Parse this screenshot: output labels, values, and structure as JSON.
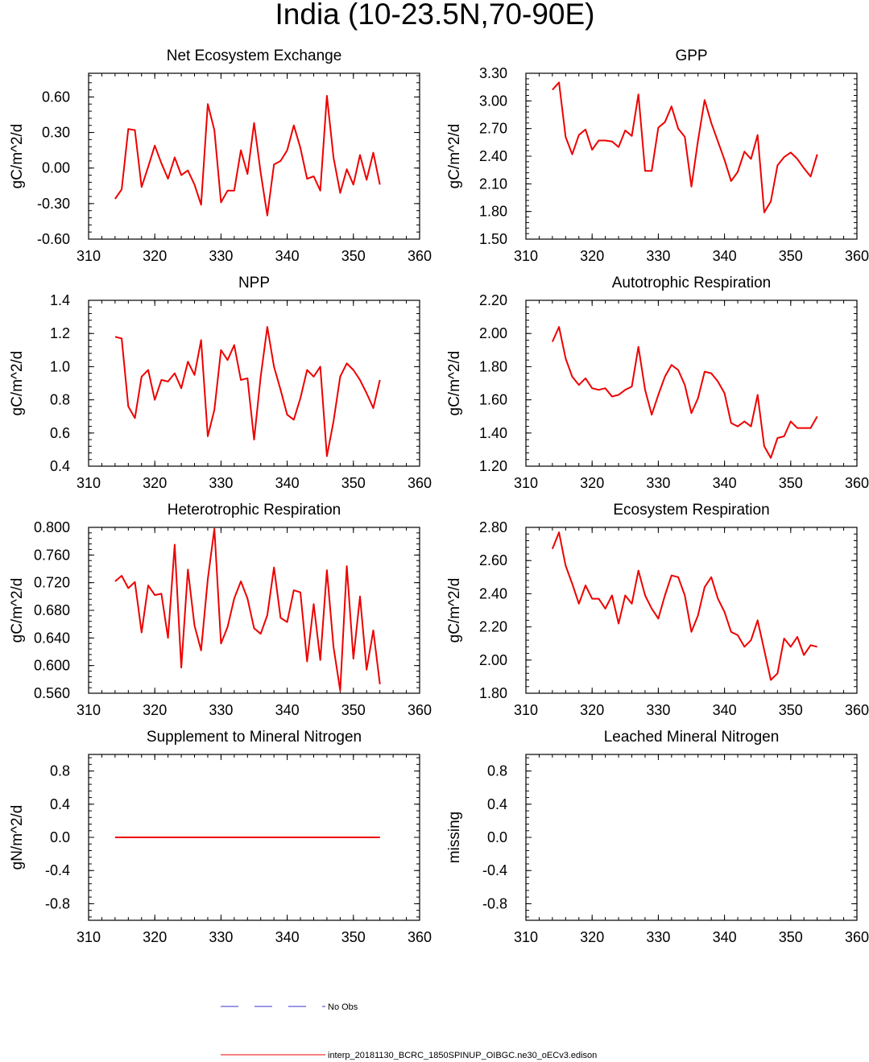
{
  "figure": {
    "title": "India (10-23.5N,70-90E)"
  },
  "legend": {
    "obs_label": "No Obs",
    "obs_color": "#3333cc",
    "model_label": "interp_20181130_BCRC_1850SPINUP_OIBGC.ne30_oECv3.edison",
    "model_color": "#ee0000"
  },
  "chart_data": [
    {
      "type": "line",
      "title": "Net Ecosystem Exchange",
      "xlabel": "",
      "ylabel": "gC/m^2/d",
      "xlim": [
        310,
        360
      ],
      "xticks": [
        310,
        320,
        330,
        340,
        350,
        360
      ],
      "ylim": [
        -0.6,
        0.8
      ],
      "yticks": [
        "-0.60",
        "-0.30",
        "0.00",
        "0.30",
        "0.60"
      ],
      "series": [
        {
          "name": "interp_20181130_BCRC_1850SPINUP_OIBGC.ne30_oECv3.edison",
          "x": [
            314,
            315,
            316,
            317,
            318,
            319,
            320,
            321,
            322,
            323,
            324,
            325,
            326,
            327,
            328,
            329,
            330,
            331,
            332,
            333,
            334,
            335,
            336,
            337,
            338,
            339,
            340,
            341,
            342,
            343,
            344,
            345,
            346,
            347,
            348,
            349,
            350,
            351,
            352,
            353,
            354
          ],
          "values": [
            -0.26,
            -0.18,
            0.33,
            0.32,
            -0.16,
            0.01,
            0.19,
            0.04,
            -0.09,
            0.09,
            -0.06,
            -0.02,
            -0.14,
            -0.31,
            0.54,
            0.32,
            -0.29,
            -0.19,
            -0.19,
            0.15,
            -0.05,
            0.38,
            -0.04,
            -0.4,
            0.03,
            0.06,
            0.15,
            0.36,
            0.17,
            -0.09,
            -0.07,
            -0.19,
            0.61,
            0.09,
            -0.21,
            -0.01,
            -0.14,
            0.11,
            -0.1,
            0.13,
            -0.14
          ]
        }
      ]
    },
    {
      "type": "line",
      "title": "GPP",
      "xlabel": "",
      "ylabel": "gC/m^2/d",
      "xlim": [
        310,
        360
      ],
      "xticks": [
        310,
        320,
        330,
        340,
        350,
        360
      ],
      "ylim": [
        1.5,
        3.3
      ],
      "yticks": [
        "1.50",
        "1.80",
        "2.10",
        "2.40",
        "2.70",
        "3.00",
        "3.30"
      ],
      "series": [
        {
          "name": "interp_20181130_BCRC_1850SPINUP_OIBGC.ne30_oECv3.edison",
          "x": [
            314,
            315,
            316,
            317,
            318,
            319,
            320,
            321,
            322,
            323,
            324,
            325,
            326,
            327,
            328,
            329,
            330,
            331,
            332,
            333,
            334,
            335,
            336,
            337,
            338,
            339,
            340,
            341,
            342,
            343,
            344,
            345,
            346,
            347,
            348,
            349,
            350,
            351,
            352,
            353,
            354
          ],
          "values": [
            3.12,
            3.2,
            2.61,
            2.42,
            2.63,
            2.69,
            2.47,
            2.57,
            2.57,
            2.56,
            2.5,
            2.68,
            2.62,
            3.07,
            2.24,
            2.24,
            2.71,
            2.77,
            2.94,
            2.7,
            2.61,
            2.07,
            2.57,
            3.01,
            2.76,
            2.56,
            2.36,
            2.13,
            2.23,
            2.45,
            2.37,
            2.63,
            1.79,
            1.91,
            2.3,
            2.39,
            2.44,
            2.37,
            2.27,
            2.18,
            2.42
          ]
        }
      ]
    },
    {
      "type": "line",
      "title": "NPP",
      "xlabel": "",
      "ylabel": "gC/m^2/d",
      "xlim": [
        310,
        360
      ],
      "xticks": [
        310,
        320,
        330,
        340,
        350,
        360
      ],
      "ylim": [
        0.4,
        1.4
      ],
      "yticks": [
        "0.4",
        "0.6",
        "0.8",
        "1.0",
        "1.2",
        "1.4"
      ],
      "series": [
        {
          "name": "interp_20181130_BCRC_1850SPINUP_OIBGC.ne30_oECv3.edison",
          "x": [
            314,
            315,
            316,
            317,
            318,
            319,
            320,
            321,
            322,
            323,
            324,
            325,
            326,
            327,
            328,
            329,
            330,
            331,
            332,
            333,
            334,
            335,
            336,
            337,
            338,
            339,
            340,
            341,
            342,
            343,
            344,
            345,
            346,
            347,
            348,
            349,
            350,
            351,
            352,
            353,
            354
          ],
          "values": [
            1.18,
            1.17,
            0.76,
            0.69,
            0.94,
            0.98,
            0.8,
            0.92,
            0.91,
            0.96,
            0.87,
            1.03,
            0.95,
            1.16,
            0.58,
            0.74,
            1.1,
            1.04,
            1.13,
            0.92,
            0.93,
            0.56,
            0.94,
            1.24,
            1.0,
            0.86,
            0.71,
            0.68,
            0.81,
            0.98,
            0.94,
            1.0,
            0.46,
            0.67,
            0.94,
            1.02,
            0.98,
            0.92,
            0.84,
            0.75,
            0.92
          ]
        }
      ]
    },
    {
      "type": "line",
      "title": "Autotrophic Respiration",
      "xlabel": "",
      "ylabel": "gC/m^2/d",
      "xlim": [
        310,
        360
      ],
      "xticks": [
        310,
        320,
        330,
        340,
        350,
        360
      ],
      "ylim": [
        1.2,
        2.2
      ],
      "yticks": [
        "1.20",
        "1.40",
        "1.60",
        "1.80",
        "2.00",
        "2.20"
      ],
      "series": [
        {
          "name": "interp_20181130_BCRC_1850SPINUP_OIBGC.ne30_oECv3.edison",
          "x": [
            314,
            315,
            316,
            317,
            318,
            319,
            320,
            321,
            322,
            323,
            324,
            325,
            326,
            327,
            328,
            329,
            330,
            331,
            332,
            333,
            334,
            335,
            336,
            337,
            338,
            339,
            340,
            341,
            342,
            343,
            344,
            345,
            346,
            347,
            348,
            349,
            350,
            351,
            352,
            353,
            354
          ],
          "values": [
            1.95,
            2.04,
            1.85,
            1.74,
            1.69,
            1.73,
            1.67,
            1.66,
            1.67,
            1.62,
            1.63,
            1.66,
            1.68,
            1.92,
            1.66,
            1.51,
            1.63,
            1.74,
            1.81,
            1.78,
            1.69,
            1.52,
            1.61,
            1.77,
            1.76,
            1.71,
            1.64,
            1.46,
            1.44,
            1.47,
            1.44,
            1.63,
            1.32,
            1.25,
            1.37,
            1.38,
            1.47,
            1.43,
            1.43,
            1.43,
            1.5
          ]
        }
      ]
    },
    {
      "type": "line",
      "title": "Heterotrophic Respiration",
      "xlabel": "",
      "ylabel": "gC/m^2/d",
      "xlim": [
        310,
        360
      ],
      "xticks": [
        310,
        320,
        330,
        340,
        350,
        360
      ],
      "ylim": [
        0.56,
        0.8
      ],
      "yticks": [
        "0.560",
        "0.600",
        "0.640",
        "0.680",
        "0.720",
        "0.760",
        "0.800"
      ],
      "series": [
        {
          "name": "interp_20181130_BCRC_1850SPINUP_OIBGC.ne30_oECv3.edison",
          "x": [
            314,
            315,
            316,
            317,
            318,
            319,
            320,
            321,
            322,
            323,
            324,
            325,
            326,
            327,
            328,
            329,
            330,
            331,
            332,
            333,
            334,
            335,
            336,
            337,
            338,
            339,
            340,
            341,
            342,
            343,
            344,
            345,
            346,
            347,
            348,
            349,
            350,
            351,
            352,
            353,
            354
          ],
          "values": [
            0.722,
            0.73,
            0.712,
            0.721,
            0.648,
            0.716,
            0.702,
            0.704,
            0.64,
            0.775,
            0.597,
            0.739,
            0.658,
            0.622,
            0.725,
            0.798,
            0.632,
            0.656,
            0.697,
            0.722,
            0.697,
            0.654,
            0.646,
            0.673,
            0.742,
            0.669,
            0.663,
            0.709,
            0.706,
            0.606,
            0.689,
            0.608,
            0.738,
            0.627,
            0.564,
            0.744,
            0.61,
            0.7,
            0.594,
            0.651,
            0.573
          ]
        }
      ]
    },
    {
      "type": "line",
      "title": "Ecosystem Respiration",
      "xlabel": "",
      "ylabel": "gC/m^2/d",
      "xlim": [
        310,
        360
      ],
      "xticks": [
        310,
        320,
        330,
        340,
        350,
        360
      ],
      "ylim": [
        1.8,
        2.8
      ],
      "yticks": [
        "1.80",
        "2.00",
        "2.20",
        "2.40",
        "2.60",
        "2.80"
      ],
      "series": [
        {
          "name": "interp_20181130_BCRC_1850SPINUP_OIBGC.ne30_oECv3.edison",
          "x": [
            314,
            315,
            316,
            317,
            318,
            319,
            320,
            321,
            322,
            323,
            324,
            325,
            326,
            327,
            328,
            329,
            330,
            331,
            332,
            333,
            334,
            335,
            336,
            337,
            338,
            339,
            340,
            341,
            342,
            343,
            344,
            345,
            346,
            347,
            348,
            349,
            350,
            351,
            352,
            353,
            354
          ],
          "values": [
            2.67,
            2.77,
            2.57,
            2.46,
            2.34,
            2.45,
            2.37,
            2.37,
            2.31,
            2.39,
            2.22,
            2.39,
            2.34,
            2.54,
            2.39,
            2.31,
            2.25,
            2.39,
            2.51,
            2.5,
            2.39,
            2.17,
            2.27,
            2.44,
            2.5,
            2.37,
            2.29,
            2.17,
            2.15,
            2.08,
            2.12,
            2.24,
            2.06,
            1.88,
            1.92,
            2.13,
            2.08,
            2.14,
            2.03,
            2.09,
            2.08
          ]
        }
      ]
    },
    {
      "type": "line",
      "title": "Supplement to Mineral Nitrogen",
      "xlabel": "",
      "ylabel": "gN/m^2/d",
      "xlim": [
        310,
        360
      ],
      "xticks": [
        310,
        320,
        330,
        340,
        350,
        360
      ],
      "ylim": [
        -1.0,
        1.0
      ],
      "yticks": [
        "-0.8",
        "-0.4",
        "0.0",
        "0.4",
        "0.8"
      ],
      "series": [
        {
          "name": "interp_20181130_BCRC_1850SPINUP_OIBGC.ne30_oECv3.edison",
          "x": [
            314,
            354
          ],
          "values": [
            0.0,
            0.0
          ]
        }
      ]
    },
    {
      "type": "line",
      "title": "Leached Mineral Nitrogen",
      "xlabel": "",
      "ylabel": "missing",
      "xlim": [
        310,
        360
      ],
      "xticks": [
        310,
        320,
        330,
        340,
        350,
        360
      ],
      "ylim": [
        -1.0,
        1.0
      ],
      "yticks": [
        "-0.8",
        "-0.4",
        "0.0",
        "0.4",
        "0.8"
      ],
      "series": []
    }
  ]
}
